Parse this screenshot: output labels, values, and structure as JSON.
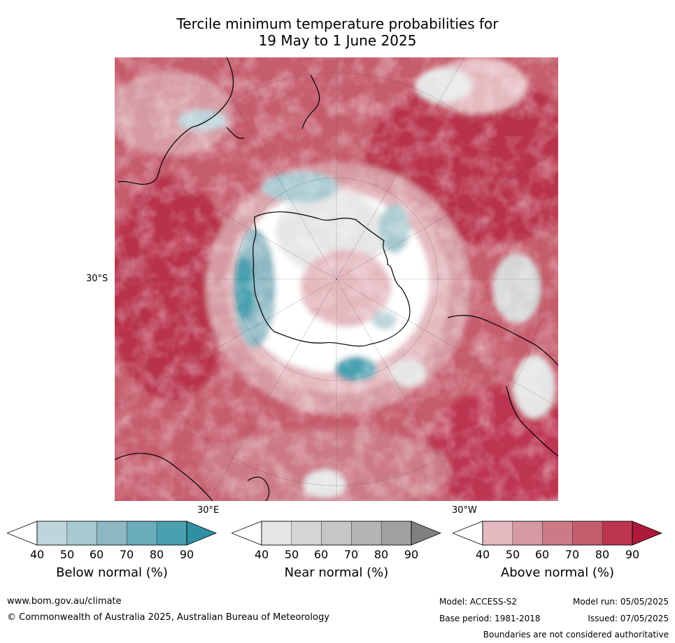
{
  "title_line1": "Tercile minimum temperature probabilities for",
  "title_line2": "19 May to 1 June 2025",
  "map": {
    "projection": "south-polar stereographic",
    "lat_labels": [
      "30°S"
    ],
    "lon_labels": [
      "30°E",
      "30°W"
    ]
  },
  "colorbars": [
    {
      "name": "below",
      "label": "Below normal (%)",
      "ticks": [
        "40",
        "50",
        "60",
        "70",
        "80",
        "90"
      ],
      "colors": [
        "#ffffff",
        "#bfd5dc",
        "#a7c9cf",
        "#8db8c3",
        "#6aacb9",
        "#49a0b0",
        "#2f8fa3"
      ]
    },
    {
      "name": "near",
      "label": "Near normal (%)",
      "ticks": [
        "40",
        "50",
        "60",
        "70",
        "80",
        "90"
      ],
      "colors": [
        "#ffffff",
        "#e6e6e6",
        "#d6d6d6",
        "#c6c6c6",
        "#b4b4b4",
        "#a0a0a0",
        "#808080"
      ]
    },
    {
      "name": "above",
      "label": "Above normal (%)",
      "ticks": [
        "40",
        "50",
        "60",
        "70",
        "80",
        "90"
      ],
      "colors": [
        "#ffffff",
        "#e4b9bf",
        "#d69aa3",
        "#cc7a86",
        "#c65d6d",
        "#bd3651",
        "#ae1a3a"
      ]
    }
  ],
  "footer": {
    "url": "www.bom.gov.au/climate",
    "copyright": "© Commonwealth of Australia 2025, Australian Bureau of Meteorology",
    "model": "Model: ACCESS-S2",
    "base_period": "Base period: 1981-2018",
    "model_run": "Model run: 05/05/2025",
    "issued": "Issued: 07/05/2025",
    "disclaimer": "Boundaries are not considered authoritative"
  }
}
